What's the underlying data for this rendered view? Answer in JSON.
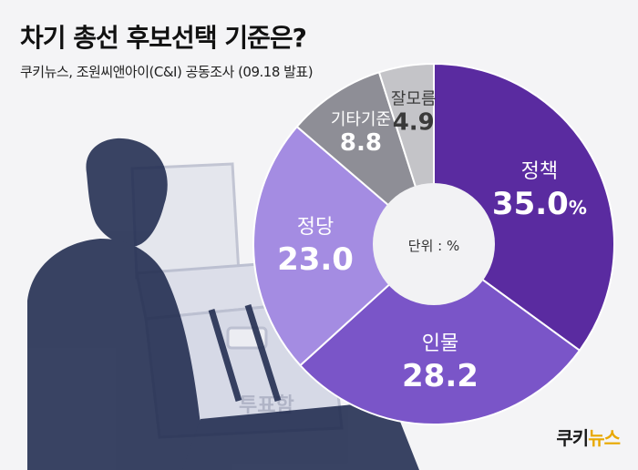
{
  "header": {
    "title": "차기 총선 후보선택 기준은?",
    "subtitle": "쿠키뉴스, 조원씨앤아이(C&I) 공동조사 (09.18 발표)"
  },
  "logo": {
    "text_main": "쿠키",
    "text_accent": "뉴스"
  },
  "background": {
    "ballot_box_label": "투표함"
  },
  "chart_data": {
    "type": "pie",
    "style": "donut",
    "center_label": "단위 : %",
    "slices": [
      {
        "label": "정책",
        "value": 35.0,
        "display": "35.0",
        "unit": "%",
        "color": "#5a2ba0"
      },
      {
        "label": "인물",
        "value": 28.2,
        "display": "28.2",
        "unit": "",
        "color": "#7a55c8"
      },
      {
        "label": "정당",
        "value": 23.0,
        "display": "23.0",
        "unit": "",
        "color": "#a48ce2"
      },
      {
        "label": "기타기준",
        "value": 8.8,
        "display": "8.8",
        "unit": "",
        "color": "#8e8e96"
      },
      {
        "label": "잘모름",
        "value": 4.9,
        "display": "4.9",
        "unit": "",
        "color": "#c4c4c8"
      }
    ]
  }
}
